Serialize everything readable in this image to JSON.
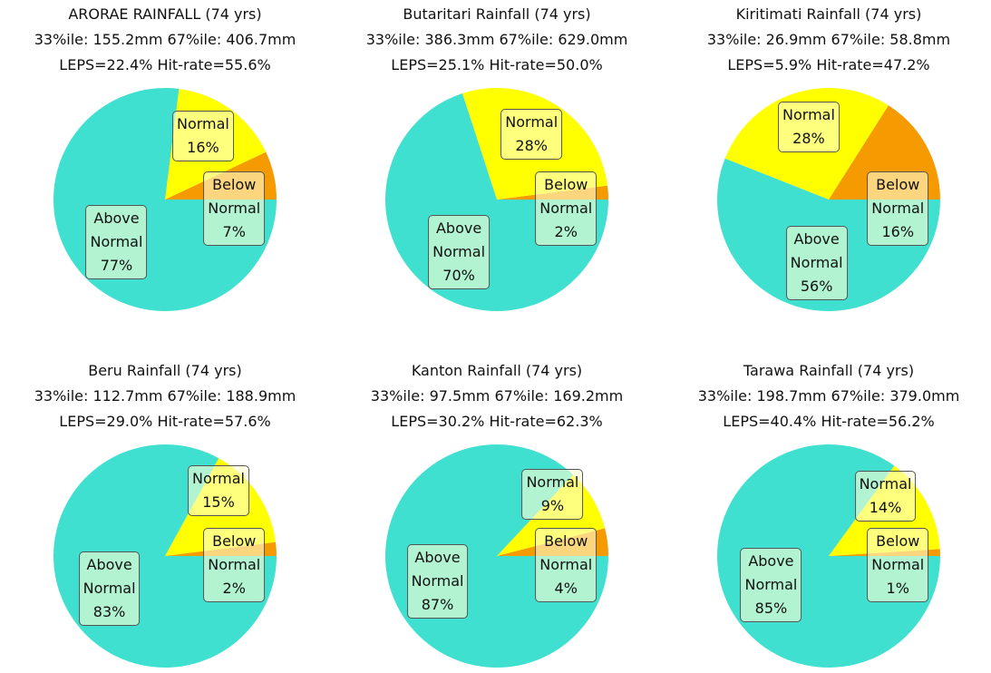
{
  "chart_data": [
    {
      "type": "pie",
      "title": "ARORAE RAINFALL (74 yrs)",
      "subtitles": [
        "33%ile: 155.2mm 67%ile: 406.7mm",
        "LEPS=22.4% Hit-rate=55.6%"
      ],
      "categories": [
        "Below Normal",
        "Normal",
        "Above Normal"
      ],
      "values": [
        7,
        16,
        77
      ],
      "value_labels": [
        "7%",
        "16%",
        "77%"
      ],
      "colors": [
        "#f59a00",
        "#ffff00",
        "#40e0d0"
      ]
    },
    {
      "type": "pie",
      "title": "Butaritari Rainfall (74 yrs)",
      "subtitles": [
        "33%ile: 386.3mm 67%ile: 629.0mm",
        "LEPS=25.1% Hit-rate=50.0%"
      ],
      "categories": [
        "Below Normal",
        "Normal",
        "Above Normal"
      ],
      "values": [
        2,
        28,
        70
      ],
      "value_labels": [
        "2%",
        "28%",
        "70%"
      ],
      "colors": [
        "#f59a00",
        "#ffff00",
        "#40e0d0"
      ]
    },
    {
      "type": "pie",
      "title": "Kiritimati Rainfall (74 yrs)",
      "subtitles": [
        "33%ile: 26.9mm 67%ile: 58.8mm",
        "LEPS=5.9% Hit-rate=47.2%"
      ],
      "categories": [
        "Below Normal",
        "Normal",
        "Above Normal"
      ],
      "values": [
        16,
        28,
        56
      ],
      "value_labels": [
        "16%",
        "28%",
        "56%"
      ],
      "colors": [
        "#f59a00",
        "#ffff00",
        "#40e0d0"
      ]
    },
    {
      "type": "pie",
      "title": "Beru Rainfall (74 yrs)",
      "subtitles": [
        "33%ile: 112.7mm 67%ile: 188.9mm",
        "LEPS=29.0% Hit-rate=57.6%"
      ],
      "categories": [
        "Below Normal",
        "Normal",
        "Above Normal"
      ],
      "values": [
        2,
        15,
        83
      ],
      "value_labels": [
        "2%",
        "15%",
        "83%"
      ],
      "colors": [
        "#f59a00",
        "#ffff00",
        "#40e0d0"
      ]
    },
    {
      "type": "pie",
      "title": "Kanton Rainfall (74 yrs)",
      "subtitles": [
        "33%ile: 97.5mm 67%ile: 169.2mm",
        "LEPS=30.2% Hit-rate=62.3%"
      ],
      "categories": [
        "Below Normal",
        "Normal",
        "Above Normal"
      ],
      "values": [
        4,
        9,
        87
      ],
      "value_labels": [
        "4%",
        "9%",
        "87%"
      ],
      "colors": [
        "#f59a00",
        "#ffff00",
        "#40e0d0"
      ]
    },
    {
      "type": "pie",
      "title": "Tarawa Rainfall (74 yrs)",
      "subtitles": [
        "33%ile: 198.7mm 67%ile: 379.0mm",
        "LEPS=40.4% Hit-rate=56.2%"
      ],
      "categories": [
        "Below Normal",
        "Normal",
        "Above Normal"
      ],
      "values": [
        1,
        14,
        85
      ],
      "value_labels": [
        "1%",
        "14%",
        "85%"
      ],
      "colors": [
        "#f59a00",
        "#ffff00",
        "#40e0d0"
      ]
    }
  ]
}
